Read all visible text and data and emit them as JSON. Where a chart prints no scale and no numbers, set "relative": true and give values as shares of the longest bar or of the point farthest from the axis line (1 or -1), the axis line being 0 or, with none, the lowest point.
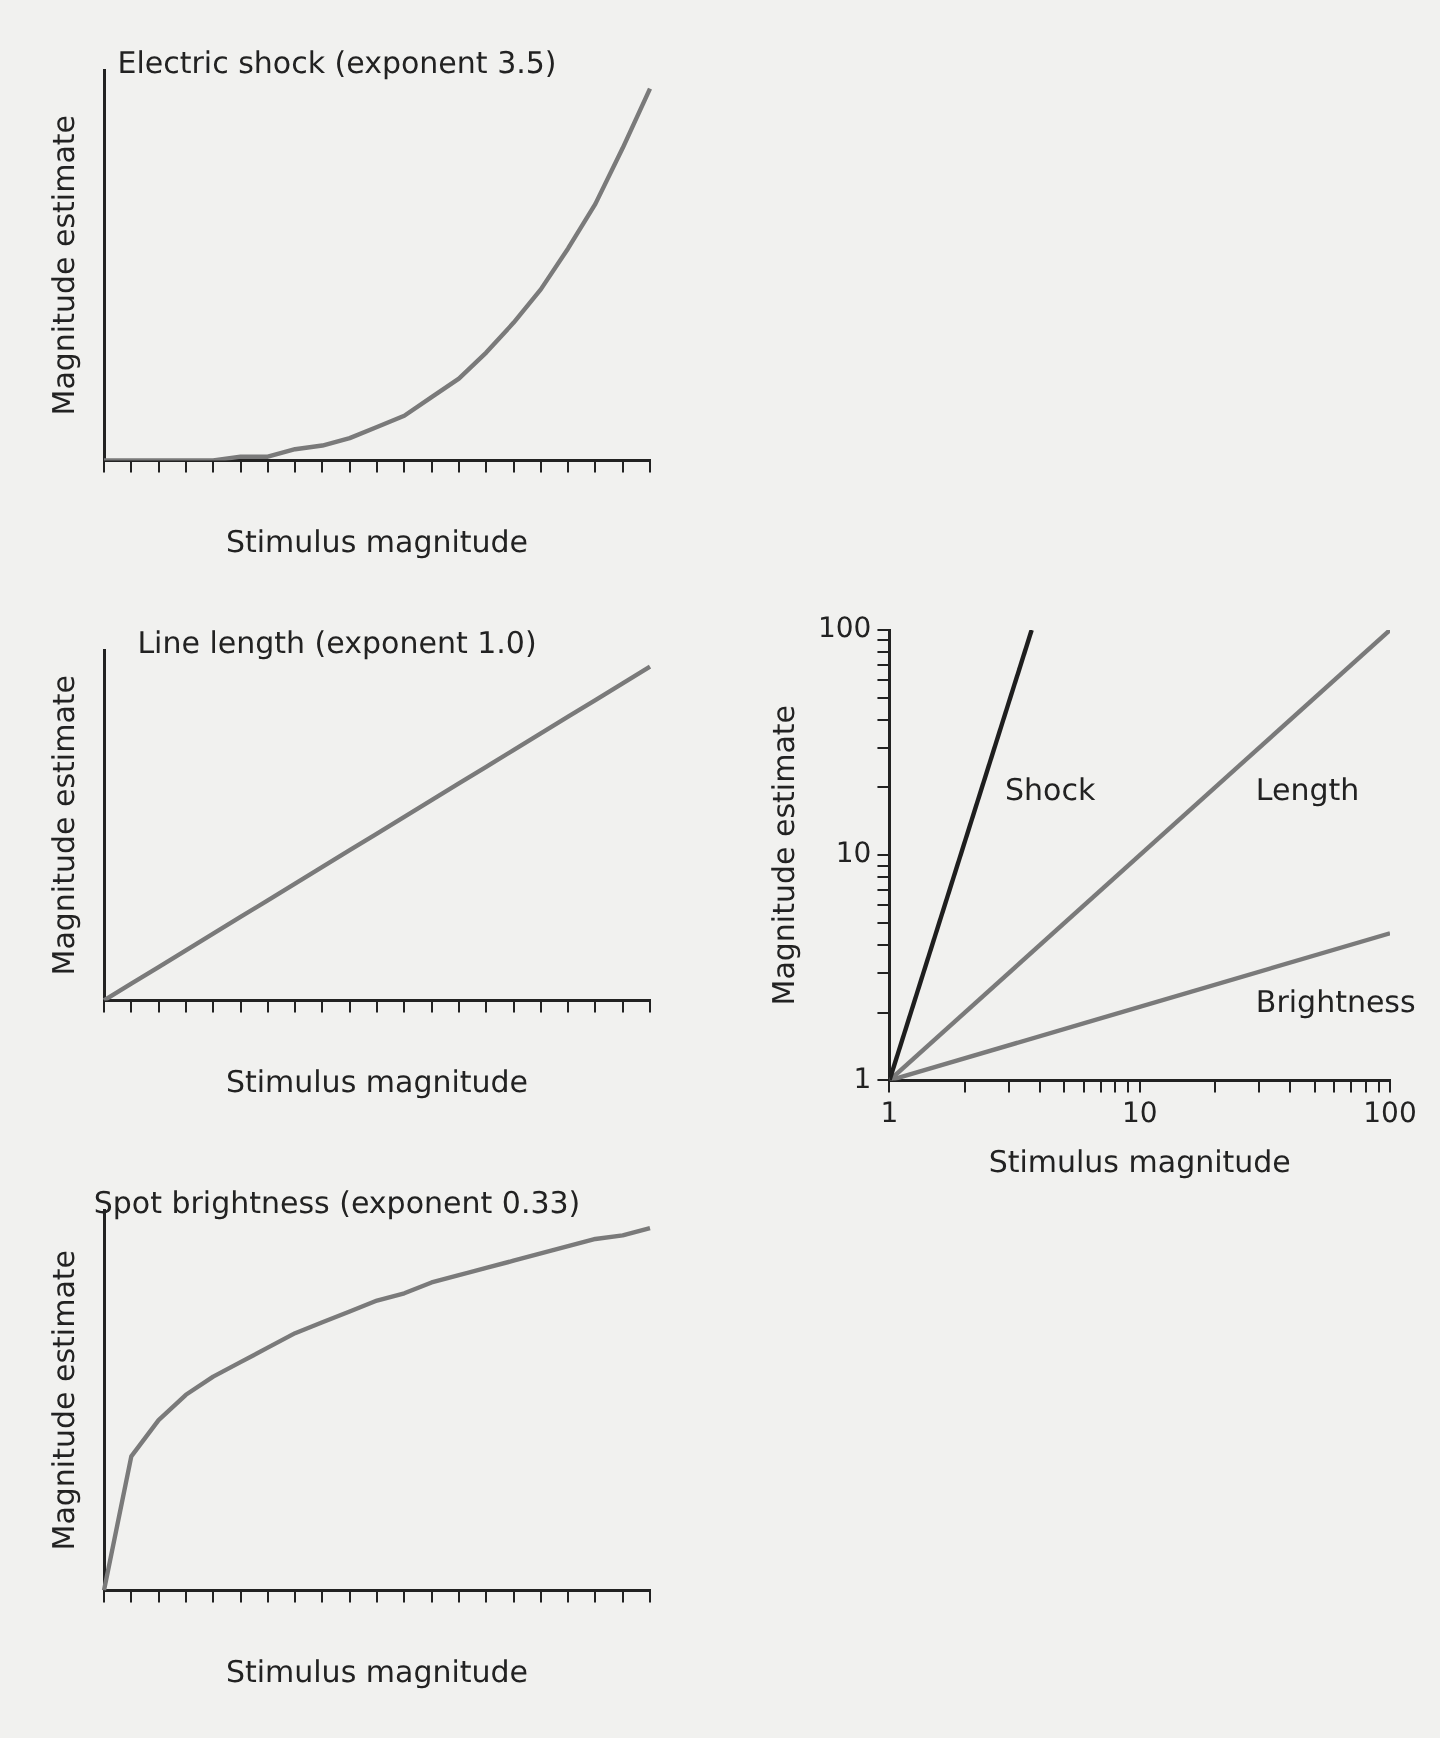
{
  "chart_data": [
    {
      "type": "line",
      "title": "Electric shock (exponent 3.5)",
      "xlabel": "Stimulus magnitude",
      "ylabel": "Magnitude estimate",
      "relative": true,
      "categories": [
        null,
        null,
        null,
        null,
        null,
        null,
        null,
        null,
        null,
        null,
        null,
        null,
        null,
        null,
        null,
        null,
        null,
        null,
        null,
        null,
        null
      ],
      "values": [
        0,
        0,
        0,
        0,
        0,
        0.01,
        0.01,
        0.03,
        0.04,
        0.06,
        0.09,
        0.12,
        0.17,
        0.22,
        0.29,
        0.37,
        0.46,
        0.57,
        0.69,
        0.84,
        1
      ],
      "color": "#7a7a7a"
    },
    {
      "type": "line",
      "title": "Line length (exponent 1.0)",
      "xlabel": "Stimulus magnitude",
      "ylabel": "Magnitude estimate",
      "relative": true,
      "categories": [
        null,
        null,
        null,
        null,
        null,
        null,
        null,
        null,
        null,
        null,
        null,
        null,
        null,
        null,
        null,
        null,
        null,
        null,
        null,
        null,
        null
      ],
      "values": [
        0,
        0.05,
        0.1,
        0.15,
        0.2,
        0.25,
        0.3,
        0.35,
        0.4,
        0.45,
        0.5,
        0.55,
        0.6,
        0.65,
        0.7,
        0.75,
        0.8,
        0.85,
        0.9,
        0.95,
        1
      ],
      "color": "#7a7a7a"
    },
    {
      "type": "line",
      "xlabel": "Stimulus magnitude",
      "ylabel": "Magnitude estimate",
      "log": "xy",
      "xlim": [
        1,
        100
      ],
      "ylim": [
        1,
        100
      ],
      "xticks": [
        1,
        {
          "value": 2,
          "label": null
        },
        {
          "value": 3,
          "label": null
        },
        {
          "value": 4,
          "label": null
        },
        {
          "value": 5,
          "label": null
        },
        {
          "value": 6,
          "label": null
        },
        {
          "value": 7,
          "label": null
        },
        {
          "value": 8,
          "label": null
        },
        {
          "value": 9,
          "label": null
        },
        10,
        {
          "value": 20,
          "label": null
        },
        {
          "value": 30,
          "label": null
        },
        {
          "value": 40,
          "label": null
        },
        {
          "value": 50,
          "label": null
        },
        {
          "value": 60,
          "label": null
        },
        {
          "value": 70,
          "label": null
        },
        {
          "value": 80,
          "label": null
        },
        {
          "value": 90,
          "label": null
        },
        100
      ],
      "yticks": [
        1,
        {
          "value": 2,
          "label": null
        },
        {
          "value": 3,
          "label": null
        },
        {
          "value": 4,
          "label": null
        },
        {
          "value": 5,
          "label": null
        },
        {
          "value": 6,
          "label": null
        },
        {
          "value": 7,
          "label": null
        },
        {
          "value": 8,
          "label": null
        },
        {
          "value": 9,
          "label": null
        },
        10,
        {
          "value": 20,
          "label": null
        },
        {
          "value": 30,
          "label": null
        },
        {
          "value": 40,
          "label": null
        },
        {
          "value": 50,
          "label": null
        },
        {
          "value": 60,
          "label": null
        },
        {
          "value": 70,
          "label": null
        },
        {
          "value": 80,
          "label": null
        },
        {
          "value": 90,
          "label": null
        },
        100
      ],
      "series": [
        {
          "name": "Shock",
          "color": "#1e1e1e",
          "x": [
            1,
            3.7
          ],
          "values": [
            1,
            100
          ]
        },
        {
          "name": "Length",
          "color": "#7a7a7a",
          "x": [
            1,
            100
          ],
          "values": [
            1,
            100
          ]
        },
        {
          "name": "Brightness",
          "color": "#7a7a7a",
          "x": [
            1,
            100
          ],
          "values": [
            1,
            4.5
          ]
        }
      ]
    },
    {
      "type": "line",
      "title": "Spot brightness (exponent 0.33)",
      "xlabel": "Stimulus magnitude",
      "ylabel": "Magnitude estimate",
      "relative": true,
      "categories": [
        null,
        null,
        null,
        null,
        null,
        null,
        null,
        null,
        null,
        null,
        null,
        null,
        null,
        null,
        null,
        null,
        null,
        null,
        null,
        null,
        null
      ],
      "values": [
        0,
        0.37,
        0.47,
        0.54,
        0.59,
        0.63,
        0.67,
        0.71,
        0.74,
        0.77,
        0.8,
        0.82,
        0.85,
        0.87,
        0.89,
        0.91,
        0.93,
        0.95,
        0.97,
        0.98,
        1
      ],
      "color": "#7a7a7a"
    }
  ]
}
